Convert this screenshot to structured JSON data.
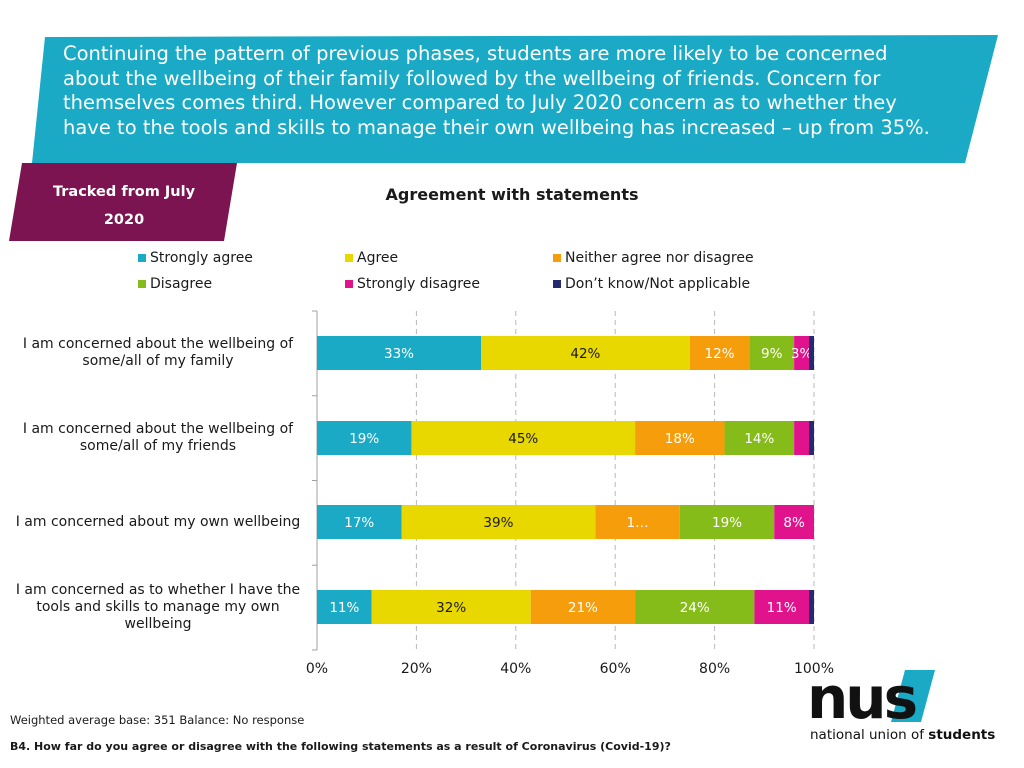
{
  "header": {
    "text": "Continuing the pattern of previous phases, students are more likely to be concerned\nabout the wellbeing of their family followed by the wellbeing of friends. Concern for\nthemselves comes third. However compared to July 2020 concern as to whether they\nhave to the tools and skills to manage their own wellbeing has increased – up from 35%.",
    "bg_color": "#1aaac5"
  },
  "tag": {
    "line1": "Tracked from July",
    "line2": "2020",
    "bg_color": "#7b1450"
  },
  "footnotes": {
    "base": "Weighted average base: 351 Balance: No response",
    "question": "B4.  How far do you agree or disagree with the following statements as a result of Coronavirus (Covid-19)?"
  },
  "logo": {
    "wordmark": "nus",
    "tagline_light": "national union of ",
    "tagline_bold": "students",
    "accent_color": "#1aaac5"
  },
  "chart_data": {
    "type": "bar",
    "orientation": "horizontal",
    "stacked": true,
    "title": "Agreement with statements",
    "xlim": [
      0,
      100
    ],
    "x_ticks": [
      "0%",
      "20%",
      "40%",
      "60%",
      "80%",
      "100%"
    ],
    "grid": "vertical dashed",
    "legend_position": "top",
    "categories": [
      "I am concerned about the wellbeing of some/all of my family",
      "I am concerned about the wellbeing of some/all of my friends",
      "I am concerned about my own wellbeing",
      "I am concerned as to whether I have the tools and skills to manage my own wellbeing"
    ],
    "series": [
      {
        "name": "Strongly agree",
        "color": "#1aaac5",
        "label_color": "#ffffff",
        "values": [
          33,
          19,
          17,
          11
        ],
        "labels": [
          "33%",
          "19%",
          "17%",
          "11%"
        ]
      },
      {
        "name": "Agree",
        "color": "#e8d800",
        "label_color": "#1a1a1a",
        "values": [
          42,
          45,
          39,
          32
        ],
        "labels": [
          "42%",
          "45%",
          "39%",
          "32%"
        ]
      },
      {
        "name": "Neither agree nor disagree",
        "color": "#f59d0a",
        "label_color": "#ffffff",
        "values": [
          12,
          18,
          17,
          21
        ],
        "labels": [
          "12%",
          "18%",
          "1…",
          "21%"
        ]
      },
      {
        "name": "Disagree",
        "color": "#86bc1a",
        "label_color": "#ffffff",
        "values": [
          9,
          14,
          19,
          24
        ],
        "labels": [
          "9%",
          "14%",
          "19%",
          "24%"
        ]
      },
      {
        "name": "Strongly disagree",
        "color": "#e0138c",
        "label_color": "#ffffff",
        "values": [
          3,
          3,
          8,
          11
        ],
        "labels": [
          "3%",
          "",
          "8%",
          "11%"
        ]
      },
      {
        "name": "Don’t know/Not applicable",
        "color": "#232a6e",
        "label_color": "#ffffff",
        "values": [
          1,
          1,
          0,
          1
        ],
        "labels": [
          "",
          "",
          "",
          ""
        ]
      }
    ]
  }
}
